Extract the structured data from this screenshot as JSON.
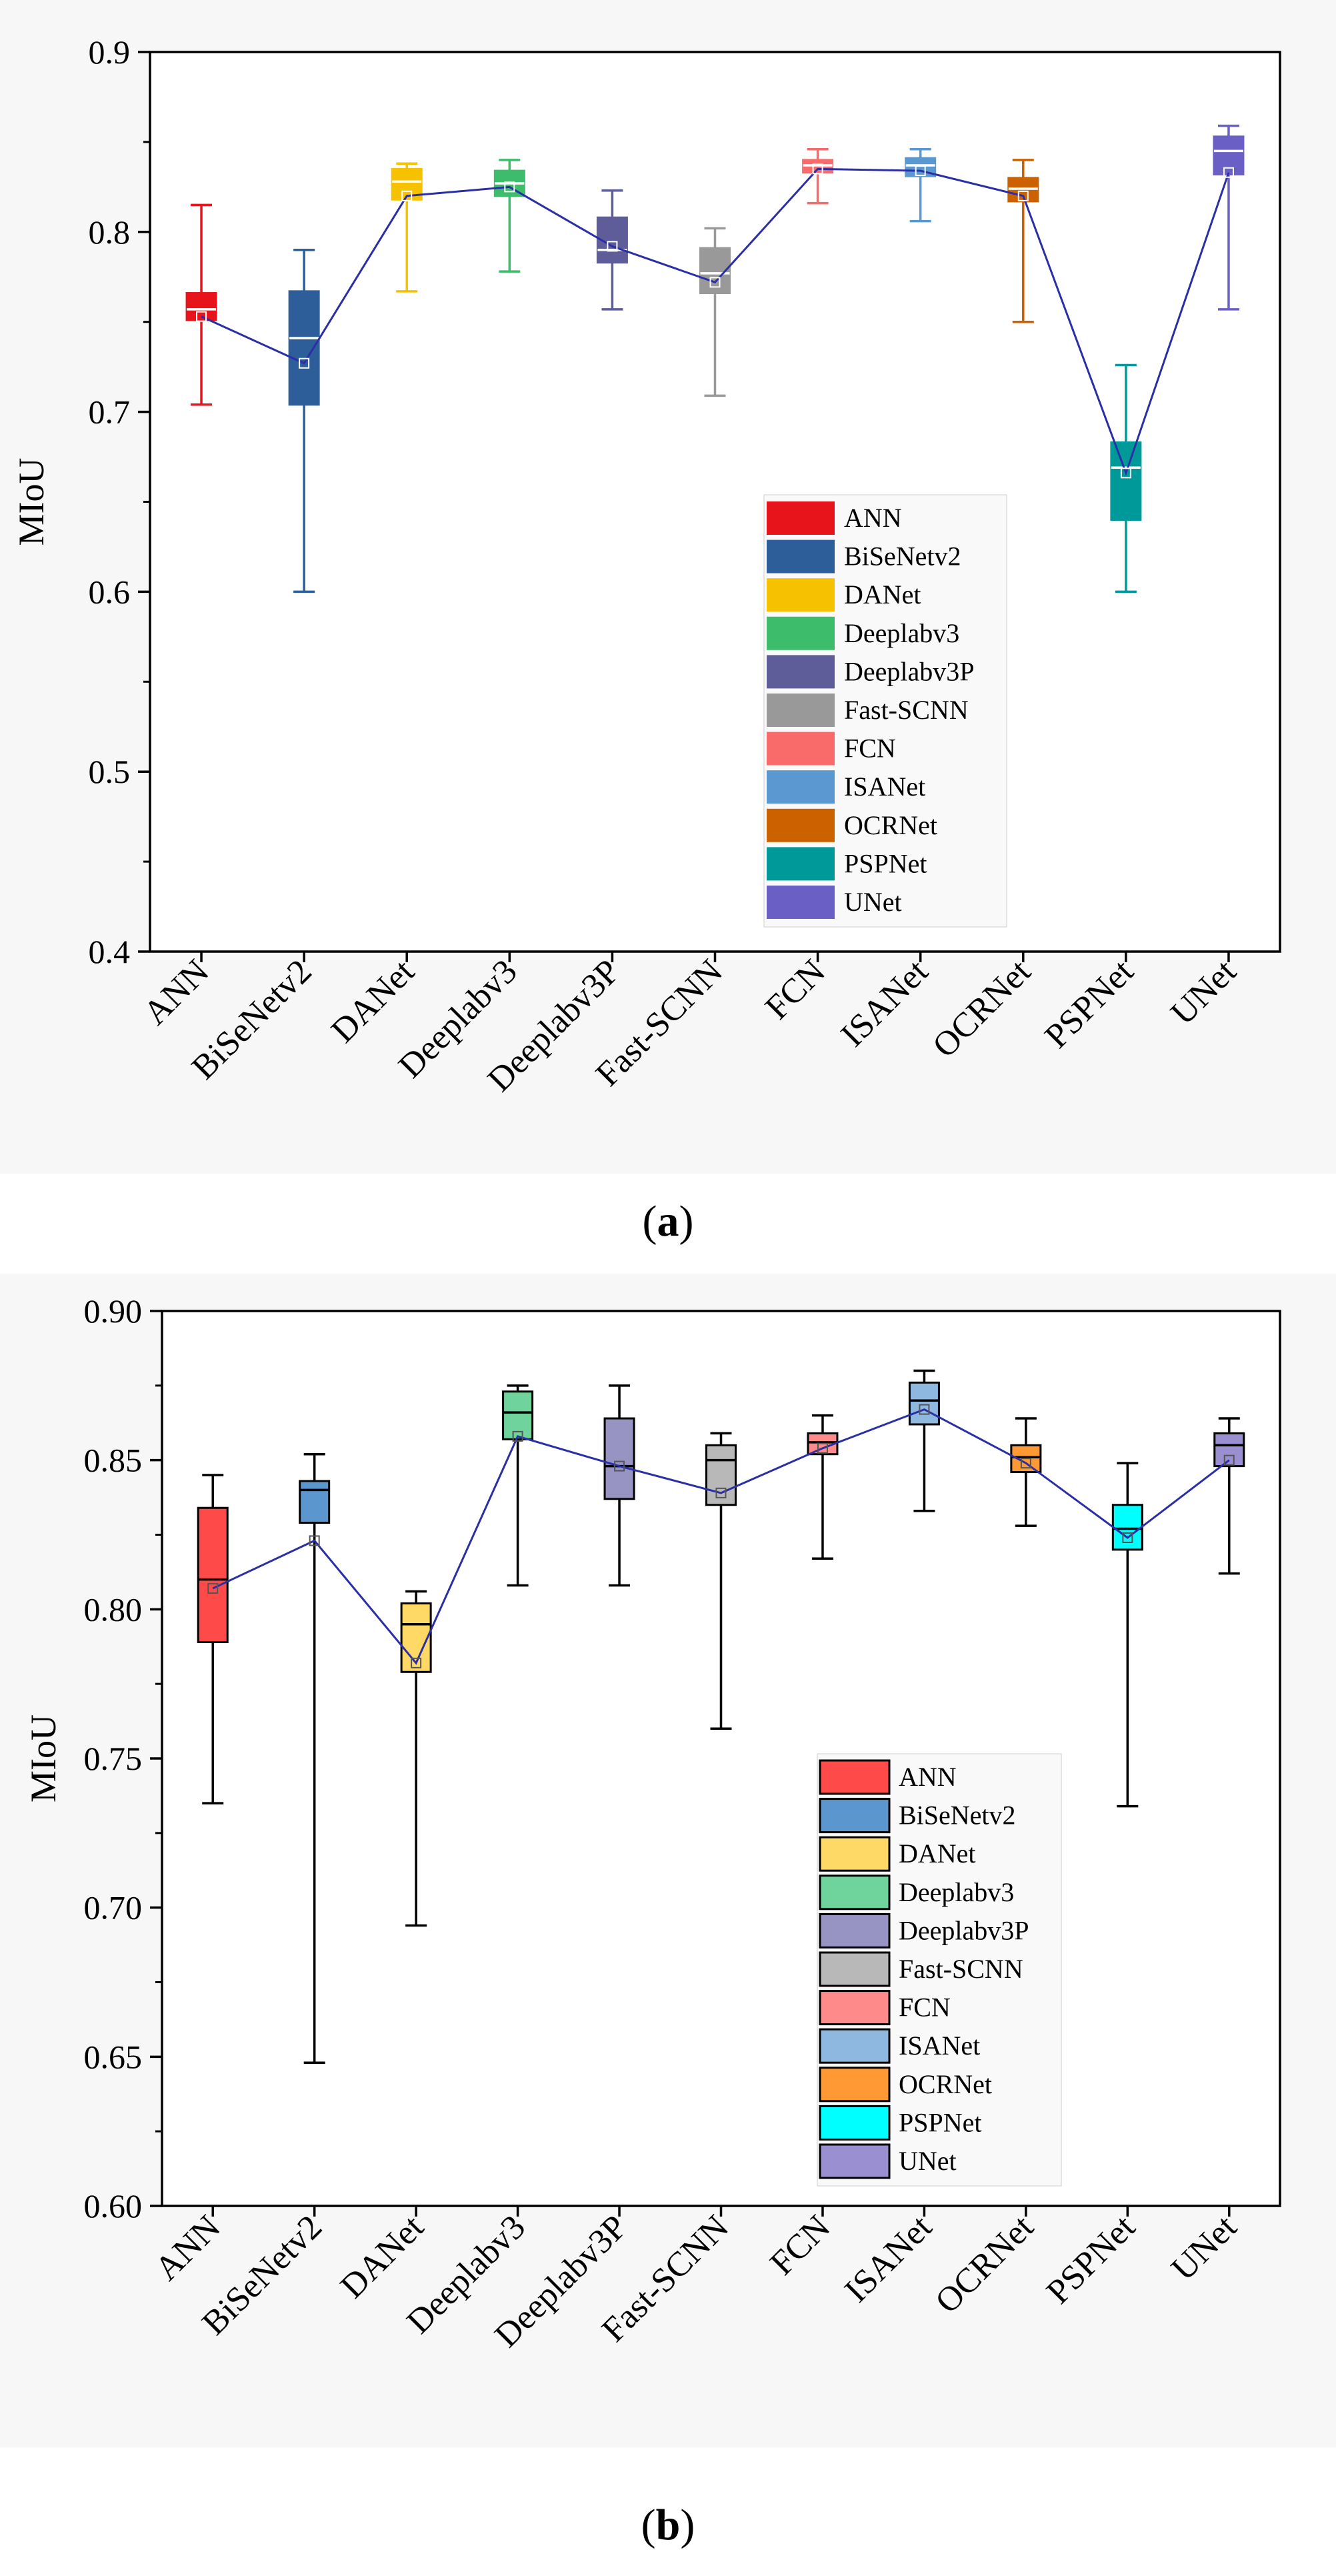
{
  "panels": [
    {
      "caption_letter": "a",
      "chart_data": {
        "type": "box",
        "ylabel": "MIoU",
        "xlabel": "",
        "ylim": [
          0.4,
          0.9
        ],
        "yticks": [
          0.4,
          0.5,
          0.6,
          0.7,
          0.8,
          0.9
        ],
        "ytick_labels": [
          "0.4",
          "0.5",
          "0.6",
          "0.7",
          "0.8",
          "0.9"
        ],
        "categories": [
          "ANN",
          "BiSeNetv2",
          "DANet",
          "Deeplabv3",
          "Deeplabv3P",
          "Fast-SCNN",
          "FCN",
          "ISANet",
          "OCRNet",
          "PSPNet",
          "UNet"
        ],
        "colors": [
          "#e8141c",
          "#2e5e9a",
          "#f6c200",
          "#3dbc6c",
          "#5e5d99",
          "#999999",
          "#f96a6a",
          "#5b97d1",
          "#cc6100",
          "#009999",
          "#6a5fc4"
        ],
        "median_color": "#ffffff",
        "mean_line_color": "#2b2fa6",
        "legend_position": "lower-right",
        "series": [
          {
            "name": "ANN",
            "min": 0.704,
            "q1": 0.751,
            "median": 0.757,
            "q3": 0.766,
            "max": 0.815,
            "mean": 0.753
          },
          {
            "name": "BiSeNetv2",
            "min": 0.6,
            "q1": 0.704,
            "median": 0.741,
            "q3": 0.767,
            "max": 0.79,
            "mean": 0.727
          },
          {
            "name": "DANet",
            "min": 0.767,
            "q1": 0.818,
            "median": 0.828,
            "q3": 0.835,
            "max": 0.838,
            "mean": 0.82
          },
          {
            "name": "Deeplabv3",
            "min": 0.778,
            "q1": 0.82,
            "median": 0.827,
            "q3": 0.834,
            "max": 0.84,
            "mean": 0.825
          },
          {
            "name": "Deeplabv3P",
            "min": 0.757,
            "q1": 0.783,
            "median": 0.79,
            "q3": 0.808,
            "max": 0.823,
            "mean": 0.792
          },
          {
            "name": "Fast-SCNN",
            "min": 0.709,
            "q1": 0.766,
            "median": 0.777,
            "q3": 0.791,
            "max": 0.802,
            "mean": 0.772
          },
          {
            "name": "FCN",
            "min": 0.816,
            "q1": 0.833,
            "median": 0.837,
            "q3": 0.84,
            "max": 0.846,
            "mean": 0.835
          },
          {
            "name": "ISANet",
            "min": 0.806,
            "q1": 0.831,
            "median": 0.837,
            "q3": 0.841,
            "max": 0.846,
            "mean": 0.834
          },
          {
            "name": "OCRNet",
            "min": 0.75,
            "q1": 0.817,
            "median": 0.824,
            "q3": 0.83,
            "max": 0.84,
            "mean": 0.82
          },
          {
            "name": "PSPNet",
            "min": 0.6,
            "q1": 0.64,
            "median": 0.669,
            "q3": 0.683,
            "max": 0.726,
            "mean": 0.666
          },
          {
            "name": "UNet",
            "min": 0.757,
            "q1": 0.832,
            "median": 0.845,
            "q3": 0.853,
            "max": 0.859,
            "mean": 0.833
          }
        ]
      }
    },
    {
      "caption_letter": "b",
      "chart_data": {
        "type": "box",
        "ylabel": "MIoU",
        "xlabel": "",
        "ylim": [
          0.6,
          0.9
        ],
        "yticks": [
          0.6,
          0.65,
          0.7,
          0.75,
          0.8,
          0.85,
          0.9
        ],
        "ytick_labels": [
          "0.60",
          "0.65",
          "0.70",
          "0.75",
          "0.80",
          "0.85",
          "0.90"
        ],
        "categories": [
          "ANN",
          "BiSeNetv2",
          "DANet",
          "Deeplabv3",
          "Deeplabv3P",
          "Fast-SCNN",
          "FCN",
          "ISANet",
          "OCRNet",
          "PSPNet",
          "UNet"
        ],
        "colors": [
          "#ff4a4a",
          "#5b96cf",
          "#ffd966",
          "#6ed49c",
          "#9793c2",
          "#b8b8b8",
          "#ff8a8a",
          "#8fb8e0",
          "#ff9933",
          "#00ffff",
          "#9a8fd1"
        ],
        "median_color": "#000000",
        "mean_line_color": "#2b2fa6",
        "legend_position": "lower-right",
        "series": [
          {
            "name": "ANN",
            "min": 0.735,
            "q1": 0.789,
            "median": 0.81,
            "q3": 0.834,
            "max": 0.845,
            "mean": 0.807
          },
          {
            "name": "BiSeNetv2",
            "min": 0.648,
            "q1": 0.829,
            "median": 0.84,
            "q3": 0.843,
            "max": 0.852,
            "mean": 0.823
          },
          {
            "name": "DANet",
            "min": 0.694,
            "q1": 0.779,
            "median": 0.795,
            "q3": 0.802,
            "max": 0.806,
            "mean": 0.782
          },
          {
            "name": "Deeplabv3",
            "min": 0.808,
            "q1": 0.857,
            "median": 0.866,
            "q3": 0.873,
            "max": 0.875,
            "mean": 0.858
          },
          {
            "name": "Deeplabv3P",
            "min": 0.808,
            "q1": 0.837,
            "median": 0.848,
            "q3": 0.864,
            "max": 0.875,
            "mean": 0.848
          },
          {
            "name": "Fast-SCNN",
            "min": 0.76,
            "q1": 0.835,
            "median": 0.85,
            "q3": 0.855,
            "max": 0.859,
            "mean": 0.839
          },
          {
            "name": "FCN",
            "min": 0.817,
            "q1": 0.852,
            "median": 0.856,
            "q3": 0.859,
            "max": 0.865,
            "mean": 0.854
          },
          {
            "name": "ISANet",
            "min": 0.833,
            "q1": 0.862,
            "median": 0.87,
            "q3": 0.876,
            "max": 0.88,
            "mean": 0.867
          },
          {
            "name": "OCRNet",
            "min": 0.828,
            "q1": 0.846,
            "median": 0.851,
            "q3": 0.855,
            "max": 0.864,
            "mean": 0.849
          },
          {
            "name": "PSPNet",
            "min": 0.734,
            "q1": 0.82,
            "median": 0.827,
            "q3": 0.835,
            "max": 0.849,
            "mean": 0.824
          },
          {
            "name": "UNet",
            "min": 0.812,
            "q1": 0.848,
            "median": 0.855,
            "q3": 0.859,
            "max": 0.864,
            "mean": 0.85
          }
        ]
      }
    }
  ]
}
